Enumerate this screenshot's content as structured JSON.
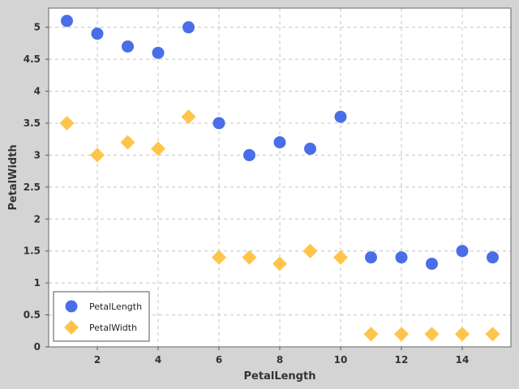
{
  "chart_data": {
    "type": "scatter",
    "xlabel": "PetalLength",
    "ylabel": "PetalWidth",
    "xlim": [
      0.4,
      15.6
    ],
    "ylim": [
      0,
      5.3
    ],
    "x_ticks": [
      2,
      4,
      6,
      8,
      10,
      12,
      14
    ],
    "y_ticks": [
      0,
      0.5,
      1,
      1.5,
      2,
      2.5,
      3,
      3.5,
      4,
      4.5,
      5
    ],
    "x_tick_labels": [
      "2",
      "4",
      "6",
      "8",
      "10",
      "12",
      "14"
    ],
    "y_tick_labels": [
      "0",
      "0.5",
      "1",
      "1.5",
      "2",
      "2.5",
      "3",
      "3.5",
      "4",
      "4.5",
      "5"
    ],
    "grid": true,
    "legend_position": "bottom-left",
    "series": [
      {
        "name": "PetalLength",
        "marker": "circle",
        "color": "#4a6ee8",
        "points": [
          [
            1,
            5.1
          ],
          [
            2,
            4.9
          ],
          [
            3,
            4.7
          ],
          [
            4,
            4.6
          ],
          [
            5,
            5.0
          ],
          [
            6,
            3.5
          ],
          [
            7,
            3.0
          ],
          [
            8,
            3.2
          ],
          [
            9,
            3.1
          ],
          [
            10,
            3.6
          ],
          [
            11,
            1.4
          ],
          [
            12,
            1.4
          ],
          [
            13,
            1.3
          ],
          [
            14,
            1.5
          ],
          [
            15,
            1.4
          ]
        ]
      },
      {
        "name": "PetalWidth",
        "marker": "diamond",
        "color": "#ffc44a",
        "points": [
          [
            1,
            3.5
          ],
          [
            2,
            3.0
          ],
          [
            3,
            3.2
          ],
          [
            4,
            3.1
          ],
          [
            5,
            3.6
          ],
          [
            6,
            1.4
          ],
          [
            7,
            1.4
          ],
          [
            8,
            1.3
          ],
          [
            9,
            1.5
          ],
          [
            10,
            1.4
          ],
          [
            11,
            0.2
          ],
          [
            12,
            0.2
          ],
          [
            13,
            0.2
          ],
          [
            14,
            0.2
          ],
          [
            15,
            0.2
          ]
        ]
      }
    ]
  }
}
